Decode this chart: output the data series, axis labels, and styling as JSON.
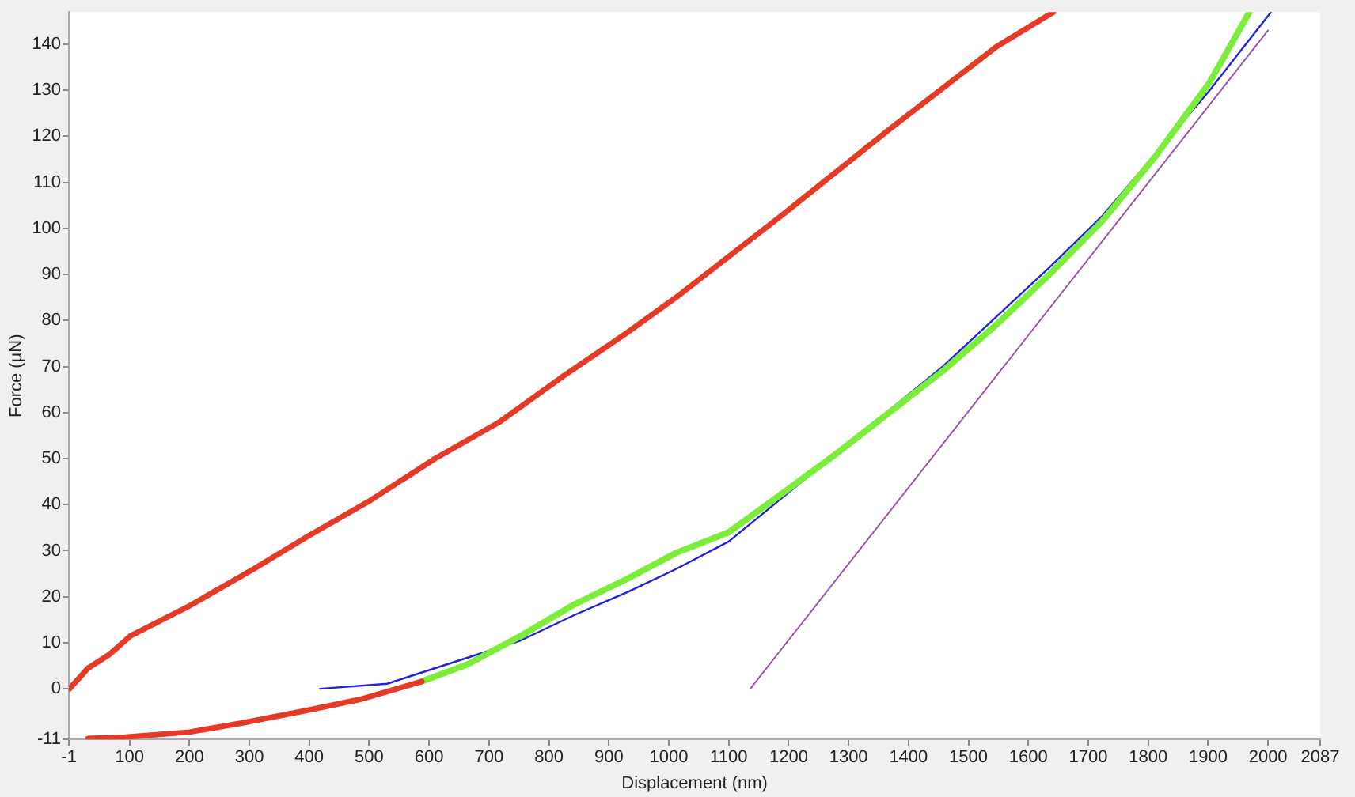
{
  "chart_data": {
    "type": "line",
    "xlabel": "Displacement (nm)",
    "ylabel": "Force (µN)",
    "xlim": [
      -1,
      2087
    ],
    "ylim": [
      -11,
      147
    ],
    "xticks": [
      -1,
      100,
      200,
      300,
      400,
      500,
      600,
      700,
      800,
      900,
      1000,
      1100,
      1200,
      1300,
      1400,
      1500,
      1600,
      1700,
      1800,
      1900,
      2000,
      2087
    ],
    "yticks": [
      -11,
      0,
      10,
      20,
      30,
      40,
      50,
      60,
      70,
      80,
      90,
      100,
      110,
      120,
      130,
      140
    ],
    "grid": false,
    "legend": false,
    "marker": "none",
    "line_style": "solid",
    "series": [
      {
        "color": "#e53a26",
        "x": [
          0,
          31,
          67,
          102,
          200,
          307,
          396,
          503,
          610,
          718,
          825,
          932,
          1012,
          1190,
          1367,
          1546,
          1642
        ],
        "values": [
          0,
          4.5,
          7.5,
          11.5,
          18,
          26,
          33,
          41,
          50,
          58,
          68,
          77.5,
          85,
          103,
          121.4,
          139.4,
          147
        ]
      },
      {
        "color": "#e53a26",
        "x": [
          31,
          93,
          200,
          289,
          396,
          485,
          588
        ],
        "values": [
          -10.8,
          -10.5,
          -9.4,
          -7.4,
          -4.7,
          -2.3,
          1.6
        ]
      },
      {
        "color": "#7ded3c",
        "x": [
          588,
          664,
          753,
          842,
          931,
          1012,
          1100,
          1190,
          1279,
          1368,
          1457,
          1546,
          1635,
          1724,
          1813,
          1902,
          1969
        ],
        "values": [
          1.6,
          5.3,
          11.5,
          18.3,
          23.9,
          29.5,
          34,
          42.5,
          51,
          60,
          69,
          79,
          90,
          101.7,
          115.8,
          131.6,
          147
        ]
      },
      {
        "color": "#2222dd",
        "x": [
          418,
          530,
          753,
          842,
          931,
          1012,
          1100,
          1457,
          1635,
          1724,
          1902,
          2005
        ],
        "values": [
          0,
          1.1,
          10.5,
          16,
          21,
          26,
          32,
          70,
          91.5,
          102.8,
          129.9,
          147
        ]
      },
      {
        "color": "#9a55aa",
        "x": [
          1136,
          2000
        ],
        "values": [
          0,
          143
        ]
      }
    ]
  }
}
